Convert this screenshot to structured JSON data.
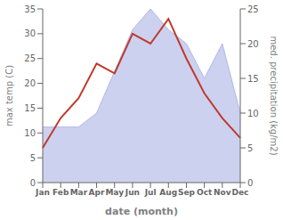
{
  "chart_data": {
    "type": "line",
    "xlabel": "date (month)",
    "ylabel": "max temp (C)",
    "y2label": "med. precipitation (kg/m2)",
    "categories": [
      "Jan",
      "Feb",
      "Mar",
      "Apr",
      "May",
      "Jun",
      "Jul",
      "Aug",
      "Sep",
      "Oct",
      "Nov",
      "Dec"
    ],
    "series": [
      {
        "type": "area",
        "axis": "y2",
        "color": "#b0b8e8",
        "values": [
          8,
          8,
          8,
          10,
          16,
          22,
          25,
          22,
          20,
          15,
          20,
          10
        ]
      },
      {
        "type": "line",
        "color": "#c0392b",
        "values": [
          7,
          13,
          17,
          24,
          22,
          30,
          28,
          33,
          25,
          18,
          13,
          9
        ]
      }
    ],
    "ylim": [
      0,
      35
    ],
    "yticks": [
      0,
      5,
      10,
      15,
      20,
      25,
      30,
      35
    ],
    "y2lim": [
      0,
      25
    ],
    "y2ticks": [
      0,
      5,
      10,
      15,
      20,
      25
    ],
    "grid": false
  }
}
